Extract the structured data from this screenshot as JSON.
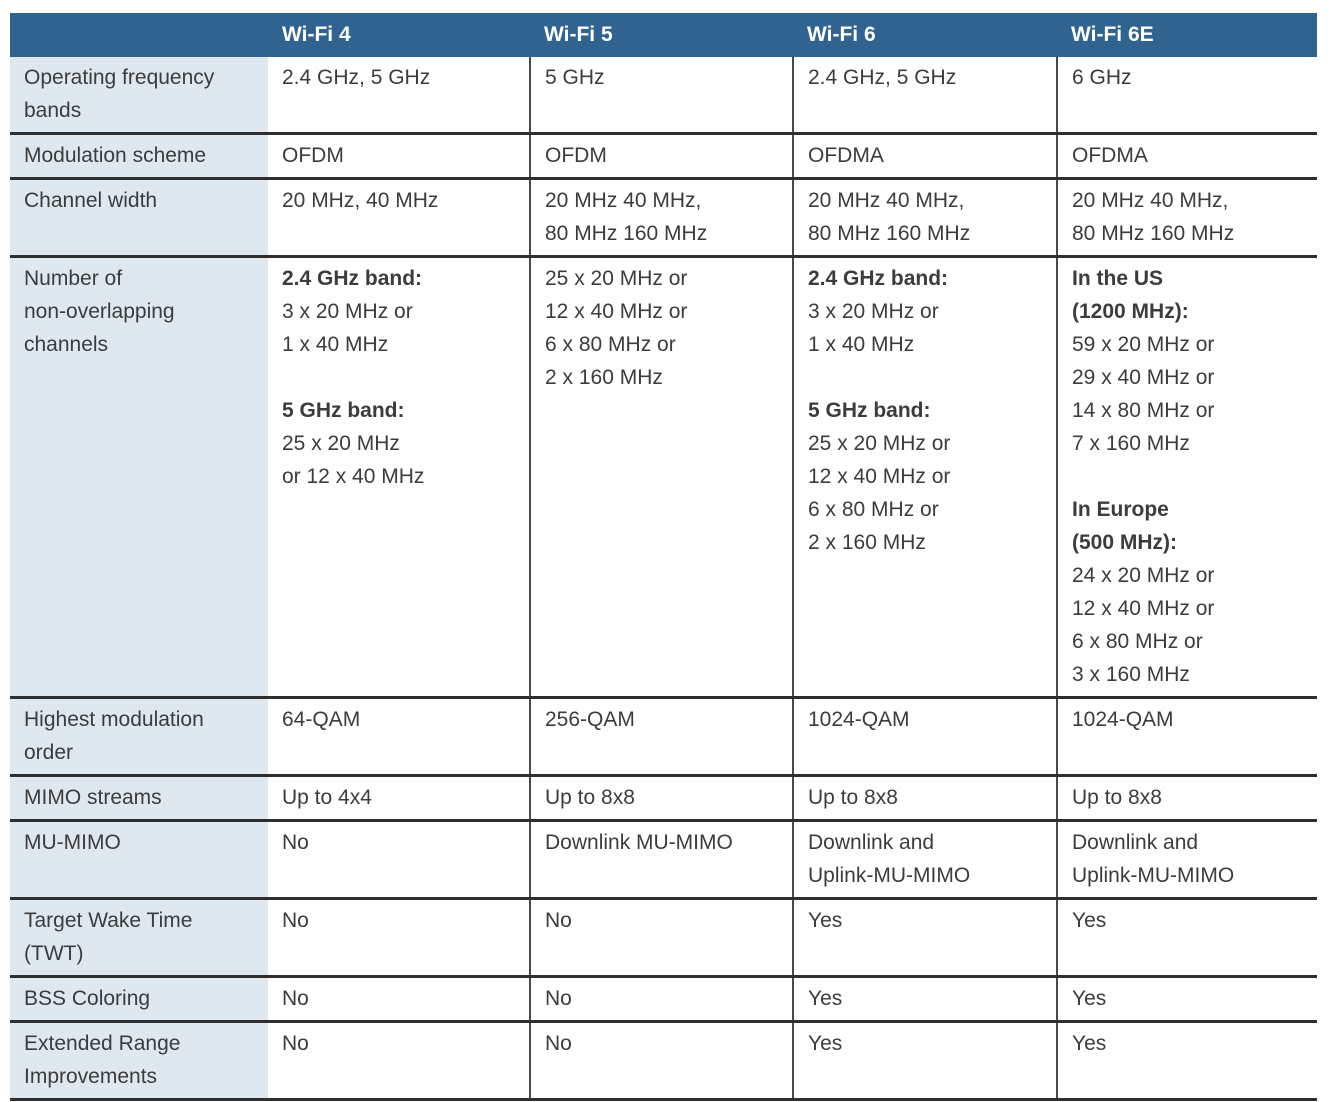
{
  "colors": {
    "header_bg": "#306390",
    "header_text": "#ffffff",
    "label_bg": "#DFE8EE",
    "text": "#3C3C3C",
    "rule": "#2E2E2E",
    "vertical_separator": "#4A4A4A"
  },
  "table": {
    "header": {
      "corner": "",
      "columns": [
        "Wi-Fi 4",
        "Wi-Fi 5",
        "Wi-Fi 6",
        "Wi-Fi 6E"
      ]
    },
    "rows": [
      {
        "label": "Operating frequency\nbands",
        "cells": [
          [
            {
              "text": "2.4 GHz, 5 GHz",
              "bold": false
            }
          ],
          [
            {
              "text": "5 GHz",
              "bold": false
            }
          ],
          [
            {
              "text": "2.4 GHz, 5 GHz",
              "bold": false
            }
          ],
          [
            {
              "text": "6 GHz",
              "bold": false
            }
          ]
        ]
      },
      {
        "label": "Modulation scheme",
        "cells": [
          [
            {
              "text": "OFDM",
              "bold": false
            }
          ],
          [
            {
              "text": "OFDM",
              "bold": false
            }
          ],
          [
            {
              "text": "OFDMA",
              "bold": false
            }
          ],
          [
            {
              "text": "OFDMA",
              "bold": false
            }
          ]
        ]
      },
      {
        "label": "Channel width",
        "cells": [
          [
            {
              "text": "20 MHz, 40 MHz",
              "bold": false
            }
          ],
          [
            {
              "text": "20 MHz 40 MHz,",
              "bold": false
            },
            {
              "text": "80 MHz 160 MHz",
              "bold": false
            }
          ],
          [
            {
              "text": "20 MHz 40 MHz,",
              "bold": false
            },
            {
              "text": "80 MHz 160 MHz",
              "bold": false
            }
          ],
          [
            {
              "text": "20 MHz 40 MHz,",
              "bold": false
            },
            {
              "text": "80 MHz 160 MHz",
              "bold": false
            }
          ]
        ]
      },
      {
        "label": "Number of\nnon-overlapping\nchannels",
        "cells": [
          [
            {
              "text": "2.4 GHz band:",
              "bold": true
            },
            {
              "text": "3 x 20 MHz or",
              "bold": false
            },
            {
              "text": "1 x 40 MHz",
              "bold": false
            },
            {
              "text": "",
              "bold": false
            },
            {
              "text": "5 GHz band:",
              "bold": true
            },
            {
              "text": "25 x 20 MHz",
              "bold": false
            },
            {
              "text": "or 12 x 40 MHz",
              "bold": false
            }
          ],
          [
            {
              "text": "25 x 20 MHz or",
              "bold": false
            },
            {
              "text": "12 x 40 MHz or",
              "bold": false
            },
            {
              "text": "6 x 80 MHz or",
              "bold": false
            },
            {
              "text": "2 x 160 MHz",
              "bold": false
            }
          ],
          [
            {
              "text": "2.4 GHz band:",
              "bold": true
            },
            {
              "text": "3 x 20 MHz or",
              "bold": false
            },
            {
              "text": "1 x 40 MHz",
              "bold": false
            },
            {
              "text": "",
              "bold": false
            },
            {
              "text": "5 GHz band:",
              "bold": true
            },
            {
              "text": "25 x 20 MHz or",
              "bold": false
            },
            {
              "text": "12 x 40 MHz or",
              "bold": false
            },
            {
              "text": "6 x 80 MHz or",
              "bold": false
            },
            {
              "text": "2 x 160 MHz",
              "bold": false
            }
          ],
          [
            {
              "text": "In the US",
              "bold": true
            },
            {
              "text": "(1200 MHz):",
              "bold": true
            },
            {
              "text": "59 x 20 MHz or",
              "bold": false
            },
            {
              "text": "29 x 40 MHz or",
              "bold": false
            },
            {
              "text": "14 x 80 MHz or",
              "bold": false
            },
            {
              "text": "7 x 160 MHz",
              "bold": false
            },
            {
              "text": "",
              "bold": false
            },
            {
              "text": "In Europe",
              "bold": true
            },
            {
              "text": "(500 MHz):",
              "bold": true
            },
            {
              "text": "24 x 20 MHz or",
              "bold": false
            },
            {
              "text": "12 x 40 MHz or",
              "bold": false
            },
            {
              "text": "6 x 80 MHz or",
              "bold": false
            },
            {
              "text": "3 x 160 MHz",
              "bold": false
            }
          ]
        ]
      },
      {
        "label": "Highest modulation\norder",
        "cells": [
          [
            {
              "text": "64-QAM",
              "bold": false
            }
          ],
          [
            {
              "text": "256-QAM",
              "bold": false
            }
          ],
          [
            {
              "text": "1024-QAM",
              "bold": false
            }
          ],
          [
            {
              "text": "1024-QAM",
              "bold": false
            }
          ]
        ]
      },
      {
        "label": "MIMO streams",
        "cells": [
          [
            {
              "text": "Up to 4x4",
              "bold": false
            }
          ],
          [
            {
              "text": "Up to 8x8",
              "bold": false
            }
          ],
          [
            {
              "text": "Up to 8x8",
              "bold": false
            }
          ],
          [
            {
              "text": "Up to 8x8",
              "bold": false
            }
          ]
        ]
      },
      {
        "label": "MU-MIMO",
        "cells": [
          [
            {
              "text": "No",
              "bold": false
            }
          ],
          [
            {
              "text": "Downlink MU-MIMO",
              "bold": false
            }
          ],
          [
            {
              "text": "Downlink and",
              "bold": false
            },
            {
              "text": "Uplink-MU-MIMO",
              "bold": false
            }
          ],
          [
            {
              "text": "Downlink and",
              "bold": false
            },
            {
              "text": "Uplink-MU-MIMO",
              "bold": false
            }
          ]
        ]
      },
      {
        "label": "Target Wake Time\n(TWT)",
        "cells": [
          [
            {
              "text": "No",
              "bold": false
            }
          ],
          [
            {
              "text": "No",
              "bold": false
            }
          ],
          [
            {
              "text": "Yes",
              "bold": false
            }
          ],
          [
            {
              "text": "Yes",
              "bold": false
            }
          ]
        ]
      },
      {
        "label": "BSS Coloring",
        "cells": [
          [
            {
              "text": "No",
              "bold": false
            }
          ],
          [
            {
              "text": "No",
              "bold": false
            }
          ],
          [
            {
              "text": "Yes",
              "bold": false
            }
          ],
          [
            {
              "text": "Yes",
              "bold": false
            }
          ]
        ]
      },
      {
        "label": "Extended Range\nImprovements",
        "cells": [
          [
            {
              "text": "No",
              "bold": false
            }
          ],
          [
            {
              "text": "No",
              "bold": false
            }
          ],
          [
            {
              "text": "Yes",
              "bold": false
            }
          ],
          [
            {
              "text": "Yes",
              "bold": false
            }
          ]
        ]
      }
    ]
  }
}
